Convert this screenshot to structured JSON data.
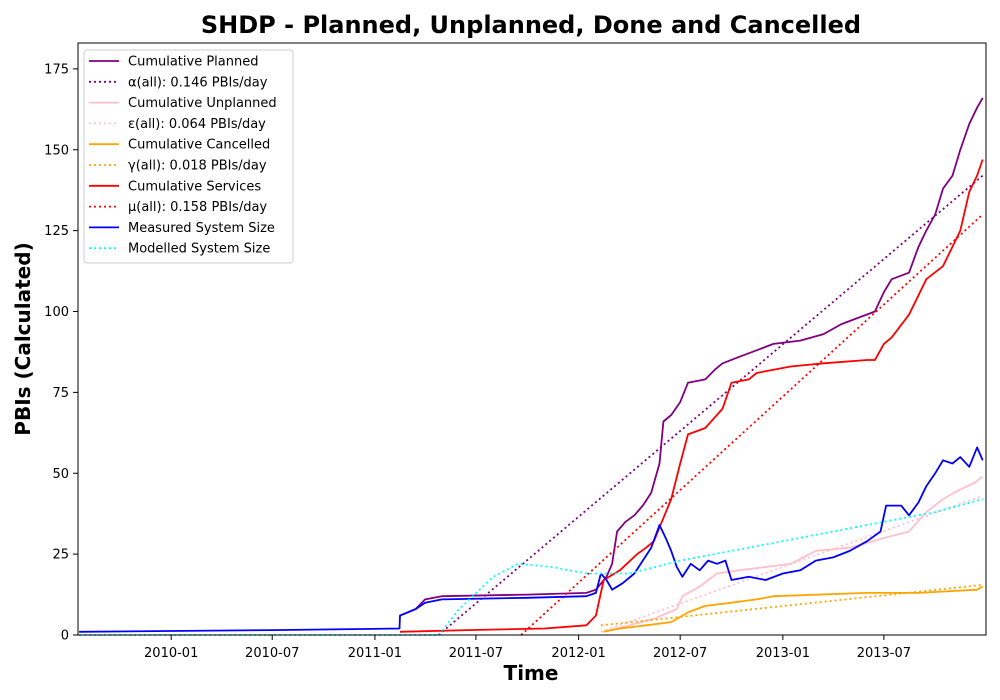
{
  "chart_data": {
    "type": "line",
    "title": "SHDP - Planned, Unplanned, Done  and Cancelled",
    "xlabel": "Time",
    "ylabel": "PBIs (Calculated)",
    "xlim": [
      "2009-07-18",
      "2013-12-31"
    ],
    "ylim": [
      0,
      183
    ],
    "x_ticks": [
      "2010-01",
      "2010-07",
      "2011-01",
      "2011-07",
      "2012-01",
      "2012-07",
      "2013-01",
      "2013-07"
    ],
    "y_ticks": [
      0,
      25,
      50,
      75,
      100,
      125,
      150,
      175
    ],
    "grid": false,
    "legend_position": "upper-left",
    "series": [
      {
        "name": "Cumulative Planned",
        "style": "solid",
        "color": "#800080",
        "points": [
          [
            "2011-02-15",
            6
          ],
          [
            "2011-03-01",
            7
          ],
          [
            "2011-03-15",
            8
          ],
          [
            "2011-04-01",
            11
          ],
          [
            "2011-05-01",
            12
          ],
          [
            "2011-10-01",
            12.5
          ],
          [
            "2012-01-15",
            13
          ],
          [
            "2012-02-01",
            14
          ],
          [
            "2012-02-20",
            18
          ],
          [
            "2012-03-01",
            22
          ],
          [
            "2012-03-10",
            32
          ],
          [
            "2012-03-25",
            35
          ],
          [
            "2012-04-10",
            37
          ],
          [
            "2012-04-25",
            40
          ],
          [
            "2012-05-10",
            44
          ],
          [
            "2012-05-25",
            53
          ],
          [
            "2012-06-01",
            66
          ],
          [
            "2012-06-15",
            68
          ],
          [
            "2012-07-01",
            72
          ],
          [
            "2012-07-15",
            78
          ],
          [
            "2012-08-15",
            79
          ],
          [
            "2012-09-01",
            82
          ],
          [
            "2012-09-15",
            84
          ],
          [
            "2012-10-15",
            86
          ],
          [
            "2012-11-15",
            88
          ],
          [
            "2012-12-15",
            90
          ],
          [
            "2013-02-01",
            91
          ],
          [
            "2013-03-15",
            93
          ],
          [
            "2013-04-15",
            96
          ],
          [
            "2013-05-15",
            98
          ],
          [
            "2013-06-15",
            100
          ],
          [
            "2013-07-01",
            106
          ],
          [
            "2013-07-15",
            110
          ],
          [
            "2013-08-15",
            112
          ],
          [
            "2013-09-01",
            120
          ],
          [
            "2013-09-15",
            125
          ],
          [
            "2013-10-01",
            130
          ],
          [
            "2013-10-15",
            138
          ],
          [
            "2013-11-01",
            142
          ],
          [
            "2013-11-15",
            150
          ],
          [
            "2013-12-01",
            158
          ],
          [
            "2013-12-15",
            163
          ],
          [
            "2013-12-25",
            166
          ]
        ]
      },
      {
        "name": "α(all): 0.146 PBIs/day",
        "style": "dotted",
        "color": "#800080",
        "points": [
          [
            "2011-04-25",
            0
          ],
          [
            "2013-12-25",
            142
          ]
        ]
      },
      {
        "name": "Cumulative Unplanned",
        "style": "solid",
        "color": "#ffc0cb",
        "points": [
          [
            "2012-02-15",
            1
          ],
          [
            "2012-04-01",
            3
          ],
          [
            "2012-05-15",
            5
          ],
          [
            "2012-06-25",
            8
          ],
          [
            "2012-07-05",
            12
          ],
          [
            "2012-08-05",
            15
          ],
          [
            "2012-09-05",
            19
          ],
          [
            "2012-10-15",
            20
          ],
          [
            "2013-01-15",
            22
          ],
          [
            "2013-03-01",
            26
          ],
          [
            "2013-05-01",
            27
          ],
          [
            "2013-07-01",
            30
          ],
          [
            "2013-08-15",
            32
          ],
          [
            "2013-09-15",
            38
          ],
          [
            "2013-10-15",
            42
          ],
          [
            "2013-11-15",
            45
          ],
          [
            "2013-12-10",
            47
          ],
          [
            "2013-12-25",
            49
          ]
        ]
      },
      {
        "name": "ε(all): 0.064 PBIs/day",
        "style": "dotted",
        "color": "#ffc0cb",
        "points": [
          [
            "2012-02-10",
            1
          ],
          [
            "2013-12-25",
            43
          ]
        ]
      },
      {
        "name": "Cumulative Cancelled",
        "style": "solid",
        "color": "#ffa500",
        "points": [
          [
            "2012-02-15",
            1
          ],
          [
            "2012-03-15",
            2
          ],
          [
            "2012-05-01",
            3
          ],
          [
            "2012-06-15",
            4
          ],
          [
            "2012-07-15",
            7
          ],
          [
            "2012-08-15",
            9
          ],
          [
            "2012-10-01",
            10
          ],
          [
            "2012-11-15",
            11
          ],
          [
            "2012-12-15",
            12
          ],
          [
            "2013-06-01",
            13
          ],
          [
            "2013-09-01",
            13
          ],
          [
            "2013-12-15",
            14
          ],
          [
            "2013-12-25",
            15
          ]
        ]
      },
      {
        "name": "γ(all): 0.018 PBIs/day",
        "style": "dotted",
        "color": "#ffa500",
        "points": [
          [
            "2012-02-10",
            3
          ],
          [
            "2013-12-25",
            15.5
          ]
        ]
      },
      {
        "name": "Cumulative Services",
        "style": "solid",
        "color": "#ff0000",
        "points": [
          [
            "2011-02-15",
            1
          ],
          [
            "2011-06-15",
            1.5
          ],
          [
            "2011-11-01",
            2
          ],
          [
            "2012-01-15",
            3
          ],
          [
            "2012-02-01",
            6
          ],
          [
            "2012-02-15",
            17
          ],
          [
            "2012-03-15",
            20
          ],
          [
            "2012-04-15",
            25
          ],
          [
            "2012-05-01",
            27
          ],
          [
            "2012-05-15",
            29
          ],
          [
            "2012-06-15",
            42
          ],
          [
            "2012-07-01",
            53
          ],
          [
            "2012-07-15",
            62
          ],
          [
            "2012-08-15",
            64
          ],
          [
            "2012-09-15",
            70
          ],
          [
            "2012-10-01",
            78
          ],
          [
            "2012-11-01",
            79
          ],
          [
            "2012-11-15",
            81
          ],
          [
            "2012-12-15",
            82
          ],
          [
            "2013-01-15",
            83
          ],
          [
            "2013-03-15",
            84
          ],
          [
            "2013-06-01",
            85
          ],
          [
            "2013-06-15",
            85
          ],
          [
            "2013-07-01",
            90
          ],
          [
            "2013-07-15",
            92
          ],
          [
            "2013-08-15",
            99
          ],
          [
            "2013-09-01",
            105
          ],
          [
            "2013-09-15",
            110
          ],
          [
            "2013-10-15",
            114
          ],
          [
            "2013-11-15",
            125
          ],
          [
            "2013-12-01",
            137
          ],
          [
            "2013-12-15",
            142
          ],
          [
            "2013-12-25",
            147
          ]
        ]
      },
      {
        "name": "μ(all): 0.158 PBIs/day",
        "style": "dotted",
        "color": "#ff0000",
        "points": [
          [
            "2011-09-20",
            0
          ],
          [
            "2013-12-25",
            130
          ]
        ]
      },
      {
        "name": "Measured System Size",
        "style": "solid",
        "color": "#0000ff",
        "points": [
          [
            "2009-07-20",
            1
          ],
          [
            "2010-07-01",
            1.5
          ],
          [
            "2011-02-14",
            2
          ],
          [
            "2011-02-15",
            6
          ],
          [
            "2011-03-15",
            8
          ],
          [
            "2011-04-01",
            10
          ],
          [
            "2011-05-01",
            11
          ],
          [
            "2011-10-01",
            11.5
          ],
          [
            "2012-01-15",
            12
          ],
          [
            "2012-02-01",
            13
          ],
          [
            "2012-02-10",
            19
          ],
          [
            "2012-02-20",
            17
          ],
          [
            "2012-03-01",
            14
          ],
          [
            "2012-03-20",
            16
          ],
          [
            "2012-04-10",
            19
          ],
          [
            "2012-04-25",
            23
          ],
          [
            "2012-05-10",
            27
          ],
          [
            "2012-05-25",
            34
          ],
          [
            "2012-06-05",
            30
          ],
          [
            "2012-06-15",
            26
          ],
          [
            "2012-06-25",
            21
          ],
          [
            "2012-07-05",
            18
          ],
          [
            "2012-07-20",
            22
          ],
          [
            "2012-08-05",
            20
          ],
          [
            "2012-08-20",
            23
          ],
          [
            "2012-09-05",
            22
          ],
          [
            "2012-09-20",
            23
          ],
          [
            "2012-10-01",
            17
          ],
          [
            "2012-11-01",
            18
          ],
          [
            "2012-12-01",
            17
          ],
          [
            "2013-01-01",
            19
          ],
          [
            "2013-02-01",
            20
          ],
          [
            "2013-03-01",
            23
          ],
          [
            "2013-04-01",
            24
          ],
          [
            "2013-05-01",
            26
          ],
          [
            "2013-06-01",
            29
          ],
          [
            "2013-06-25",
            32
          ],
          [
            "2013-07-05",
            40
          ],
          [
            "2013-08-01",
            40
          ],
          [
            "2013-08-15",
            37
          ],
          [
            "2013-09-01",
            41
          ],
          [
            "2013-09-15",
            46
          ],
          [
            "2013-10-01",
            50
          ],
          [
            "2013-10-15",
            54
          ],
          [
            "2013-11-01",
            53
          ],
          [
            "2013-11-15",
            55
          ],
          [
            "2013-12-01",
            52
          ],
          [
            "2013-12-15",
            58
          ],
          [
            "2013-12-25",
            54
          ]
        ]
      },
      {
        "name": "Modelled System Size",
        "style": "dotted",
        "color": "#00ffff",
        "points": [
          [
            "2009-07-20",
            0
          ],
          [
            "2011-04-25",
            0
          ],
          [
            "2011-06-01",
            8
          ],
          [
            "2011-08-01",
            18
          ],
          [
            "2011-09-15",
            22
          ],
          [
            "2011-11-15",
            21
          ],
          [
            "2012-01-15",
            19
          ],
          [
            "2012-04-01",
            19
          ],
          [
            "2012-07-01",
            23
          ],
          [
            "2012-10-01",
            26
          ],
          [
            "2013-01-01",
            29
          ],
          [
            "2013-04-01",
            32
          ],
          [
            "2013-07-01",
            35
          ],
          [
            "2013-10-01",
            38
          ],
          [
            "2013-12-25",
            42
          ]
        ]
      }
    ]
  }
}
